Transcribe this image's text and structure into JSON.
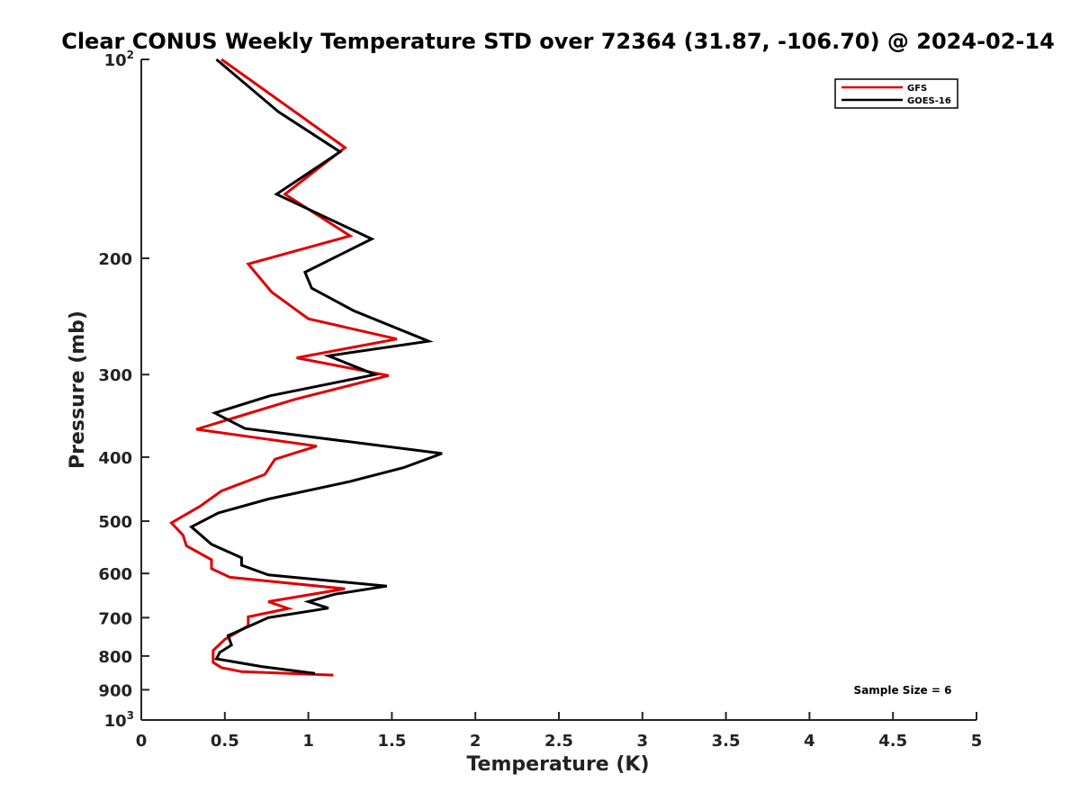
{
  "chart_data": {
    "type": "line",
    "title": "Clear CONUS Weekly Temperature STD over 72364 (31.87, -106.70) @ 2024-02-14",
    "xlabel": "Temperature (K)",
    "ylabel": "Pressure (mb)",
    "xlim": [
      0,
      5
    ],
    "ylim": [
      100,
      1000
    ],
    "y_scale": "log",
    "y_reversed": true,
    "grid": false,
    "legend_position": "top-right",
    "x_ticks": [
      "0",
      "0.5",
      "1",
      "1.5",
      "2",
      "2.5",
      "3",
      "3.5",
      "4",
      "4.5",
      "5"
    ],
    "y_ticks": [
      {
        "value": 100,
        "label": "10",
        "sup": "2"
      },
      {
        "value": 200,
        "label": "200"
      },
      {
        "value": 300,
        "label": "300"
      },
      {
        "value": 400,
        "label": "400"
      },
      {
        "value": 500,
        "label": "500"
      },
      {
        "value": 600,
        "label": "600"
      },
      {
        "value": 700,
        "label": "700"
      },
      {
        "value": 800,
        "label": "800"
      },
      {
        "value": 900,
        "label": "900"
      },
      {
        "value": 1000,
        "label": "10",
        "sup": "3"
      }
    ],
    "annotation": "Sample Size = 6",
    "series": [
      {
        "name": "GFS",
        "color": "#e00000",
        "points": [
          [
            0.48,
            100
          ],
          [
            1.22,
            136
          ],
          [
            0.86,
            160
          ],
          [
            1.25,
            185
          ],
          [
            0.64,
            204
          ],
          [
            0.78,
            225
          ],
          [
            1.0,
            247
          ],
          [
            1.53,
            265
          ],
          [
            0.93,
            283
          ],
          [
            1.48,
            301
          ],
          [
            0.92,
            327
          ],
          [
            0.33,
            363
          ],
          [
            1.05,
            385
          ],
          [
            0.8,
            403
          ],
          [
            0.74,
            425
          ],
          [
            0.48,
            450
          ],
          [
            0.35,
            475
          ],
          [
            0.18,
            503
          ],
          [
            0.25,
            525
          ],
          [
            0.27,
            545
          ],
          [
            0.42,
            572
          ],
          [
            0.42,
            590
          ],
          [
            0.53,
            608
          ],
          [
            1.22,
            633
          ],
          [
            0.76,
            662
          ],
          [
            0.88,
            678
          ],
          [
            0.64,
            698
          ],
          [
            0.64,
            720
          ],
          [
            0.5,
            755
          ],
          [
            0.43,
            785
          ],
          [
            0.43,
            818
          ],
          [
            0.48,
            833
          ],
          [
            0.6,
            845
          ],
          [
            1.15,
            855
          ]
        ]
      },
      {
        "name": "GOES-16",
        "color": "#000000",
        "points": [
          [
            0.45,
            100
          ],
          [
            0.82,
            120
          ],
          [
            1.19,
            138
          ],
          [
            0.81,
            160
          ],
          [
            1.38,
            187
          ],
          [
            0.98,
            210
          ],
          [
            1.02,
            222
          ],
          [
            1.27,
            240
          ],
          [
            1.72,
            267
          ],
          [
            1.12,
            281
          ],
          [
            1.4,
            300
          ],
          [
            0.77,
            323
          ],
          [
            0.44,
            343
          ],
          [
            0.62,
            362
          ],
          [
            1.8,
            395
          ],
          [
            1.57,
            415
          ],
          [
            1.24,
            436
          ],
          [
            0.76,
            463
          ],
          [
            0.46,
            486
          ],
          [
            0.3,
            510
          ],
          [
            0.42,
            542
          ],
          [
            0.6,
            568
          ],
          [
            0.6,
            583
          ],
          [
            0.76,
            603
          ],
          [
            1.47,
            627
          ],
          [
            1.16,
            645
          ],
          [
            1.0,
            662
          ],
          [
            1.12,
            677
          ],
          [
            0.76,
            700
          ],
          [
            0.52,
            745
          ],
          [
            0.54,
            770
          ],
          [
            0.47,
            790
          ],
          [
            0.45,
            808
          ],
          [
            0.72,
            830
          ],
          [
            1.04,
            850
          ]
        ]
      }
    ]
  }
}
